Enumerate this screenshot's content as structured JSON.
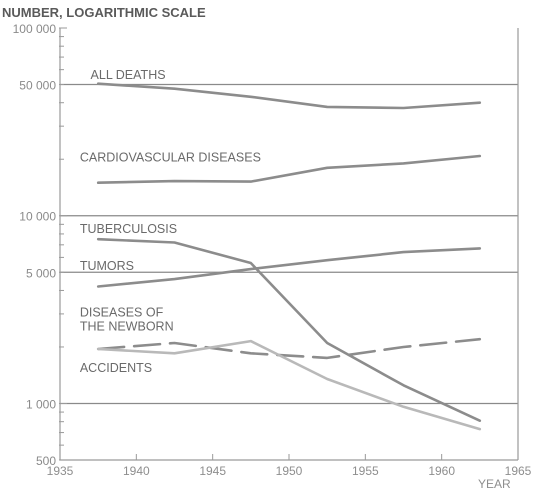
{
  "chart_data": {
    "type": "line",
    "ylabel": "NUMBER, LOGARITHMIC SCALE",
    "xlabel": "YEAR",
    "yscale": "log",
    "ylim": [
      500,
      100000
    ],
    "xlim": [
      1935,
      1965
    ],
    "grid": "major horizontal lines at 1000, 5000, 10000, 50000",
    "colors": {
      "dark": "#8c8c8c",
      "light": "#b9b9b9",
      "axis": "#9a9a9a"
    },
    "y_ticks": [
      {
        "value": 100000,
        "label": "100 000"
      },
      {
        "value": 50000,
        "label": "50 000"
      },
      {
        "value": 10000,
        "label": "10 000"
      },
      {
        "value": 5000,
        "label": "5 000"
      },
      {
        "value": 1000,
        "label": "1 000"
      },
      {
        "value": 500,
        "label": "500"
      }
    ],
    "x_ticks": [
      {
        "value": 1935,
        "label": "1935"
      },
      {
        "value": 1940,
        "label": "1940"
      },
      {
        "value": 1945,
        "label": "1945"
      },
      {
        "value": 1950,
        "label": "1950"
      },
      {
        "value": 1955,
        "label": "1955"
      },
      {
        "value": 1960,
        "label": "1960"
      },
      {
        "value": 1965,
        "label": "1965"
      }
    ],
    "series": [
      {
        "name": "ALL DEATHS",
        "style": "solid",
        "tone": "dark",
        "x": [
          1937.5,
          1942.5,
          1947.5,
          1952.5,
          1957.5,
          1962.5
        ],
        "y": [
          50500,
          47500,
          43000,
          38000,
          37500,
          40000
        ]
      },
      {
        "name": "CARDIOVASCULAR DISEASES",
        "style": "solid",
        "tone": "dark",
        "x": [
          1937.5,
          1942.5,
          1947.5,
          1952.5,
          1957.5,
          1962.5
        ],
        "y": [
          15000,
          15300,
          15200,
          18000,
          19000,
          20800
        ]
      },
      {
        "name": "TUBERCULOSIS",
        "style": "solid",
        "tone": "dark",
        "x": [
          1937.5,
          1942.5,
          1947.5,
          1952.5,
          1957.5,
          1962.5
        ],
        "y": [
          7500,
          7200,
          5600,
          2100,
          1250,
          810
        ]
      },
      {
        "name": "TUMORS",
        "style": "solid",
        "tone": "dark",
        "x": [
          1937.5,
          1942.5,
          1947.5,
          1952.5,
          1957.5,
          1962.5
        ],
        "y": [
          4200,
          4600,
          5200,
          5800,
          6400,
          6700
        ]
      },
      {
        "name": "DISEASES OF THE NEWBORN",
        "style": "dashed",
        "tone": "dark",
        "x": [
          1937.5,
          1942.5,
          1947.5,
          1952.5,
          1957.5,
          1962.5
        ],
        "y": [
          1950,
          2100,
          1850,
          1750,
          2000,
          2200
        ]
      },
      {
        "name": "ACCIDENTS",
        "style": "solid",
        "tone": "light",
        "x": [
          1937.5,
          1942.5,
          1947.5,
          1952.5,
          1957.5,
          1962.5
        ],
        "y": [
          1950,
          1850,
          2150,
          1350,
          960,
          730
        ]
      }
    ],
    "labels": [
      {
        "text": "ALL DEATHS",
        "series": "ALL DEATHS",
        "x": 1937.0,
        "y": 53500
      },
      {
        "text": "CARDIOVASCULAR DISEASES",
        "series": "CARDIOVASCULAR DISEASES",
        "x": 1936.3,
        "y": 19500
      },
      {
        "text": "TUBERCULOSIS",
        "series": "TUBERCULOSIS",
        "x": 1936.3,
        "y": 8100
      },
      {
        "text": "TUMORS",
        "series": "TUMORS",
        "x": 1936.3,
        "y": 5150
      },
      {
        "text": "DISEASES OF",
        "series": "DISEASES OF THE NEWBORN",
        "x": 1936.3,
        "y": 2900
      },
      {
        "text": "THE NEWBORN",
        "series": "DISEASES OF THE NEWBORN",
        "x": 1936.3,
        "y": 2450
      },
      {
        "text": "ACCIDENTS",
        "series": "ACCIDENTS",
        "x": 1936.3,
        "y": 1470
      }
    ]
  }
}
